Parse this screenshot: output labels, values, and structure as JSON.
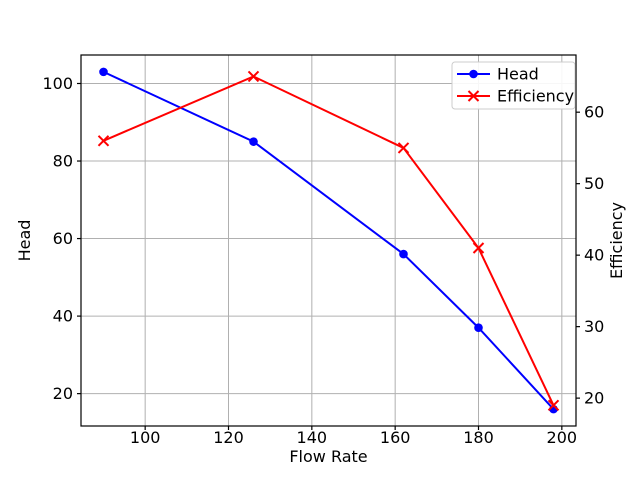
{
  "figure": {
    "background": "#ffffff"
  },
  "chart_data": {
    "type": "line",
    "title": "",
    "xlabel": "Flow Rate",
    "ylabel_left": "Head",
    "ylabel_left_color": "#0000ff",
    "ylabel_right": "Efficiency",
    "ylabel_right_color": "#ff0000",
    "x": [
      90,
      126,
      162,
      180,
      198
    ],
    "series": [
      {
        "name": "Head",
        "axis": "left",
        "color": "#0000ff",
        "marker": "circle",
        "values": [
          103,
          85,
          56,
          37,
          16
        ]
      },
      {
        "name": "Efficiency",
        "axis": "right",
        "color": "#ff0000",
        "marker": "x",
        "values": [
          56,
          65,
          55,
          41,
          19
        ]
      }
    ],
    "xlim": [
      84.6,
      203.4
    ],
    "xticks": [
      100,
      120,
      140,
      160,
      180,
      200
    ],
    "ylim_left": [
      11.65,
      107.35
    ],
    "yticks_left": [
      20,
      40,
      60,
      80,
      100
    ],
    "ylim_right": [
      16.1,
      68.0
    ],
    "yticks_right": [
      20,
      30,
      40,
      50,
      60
    ],
    "grid": true,
    "grid_color": "#b0b0b0",
    "spine_color": "#000000",
    "tick_color": "#000000",
    "legend": {
      "position": "upper right",
      "frame_border_color": "#cccccc",
      "frame_fill": "#ffffff",
      "labels": [
        "Head",
        "Efficiency"
      ]
    }
  }
}
